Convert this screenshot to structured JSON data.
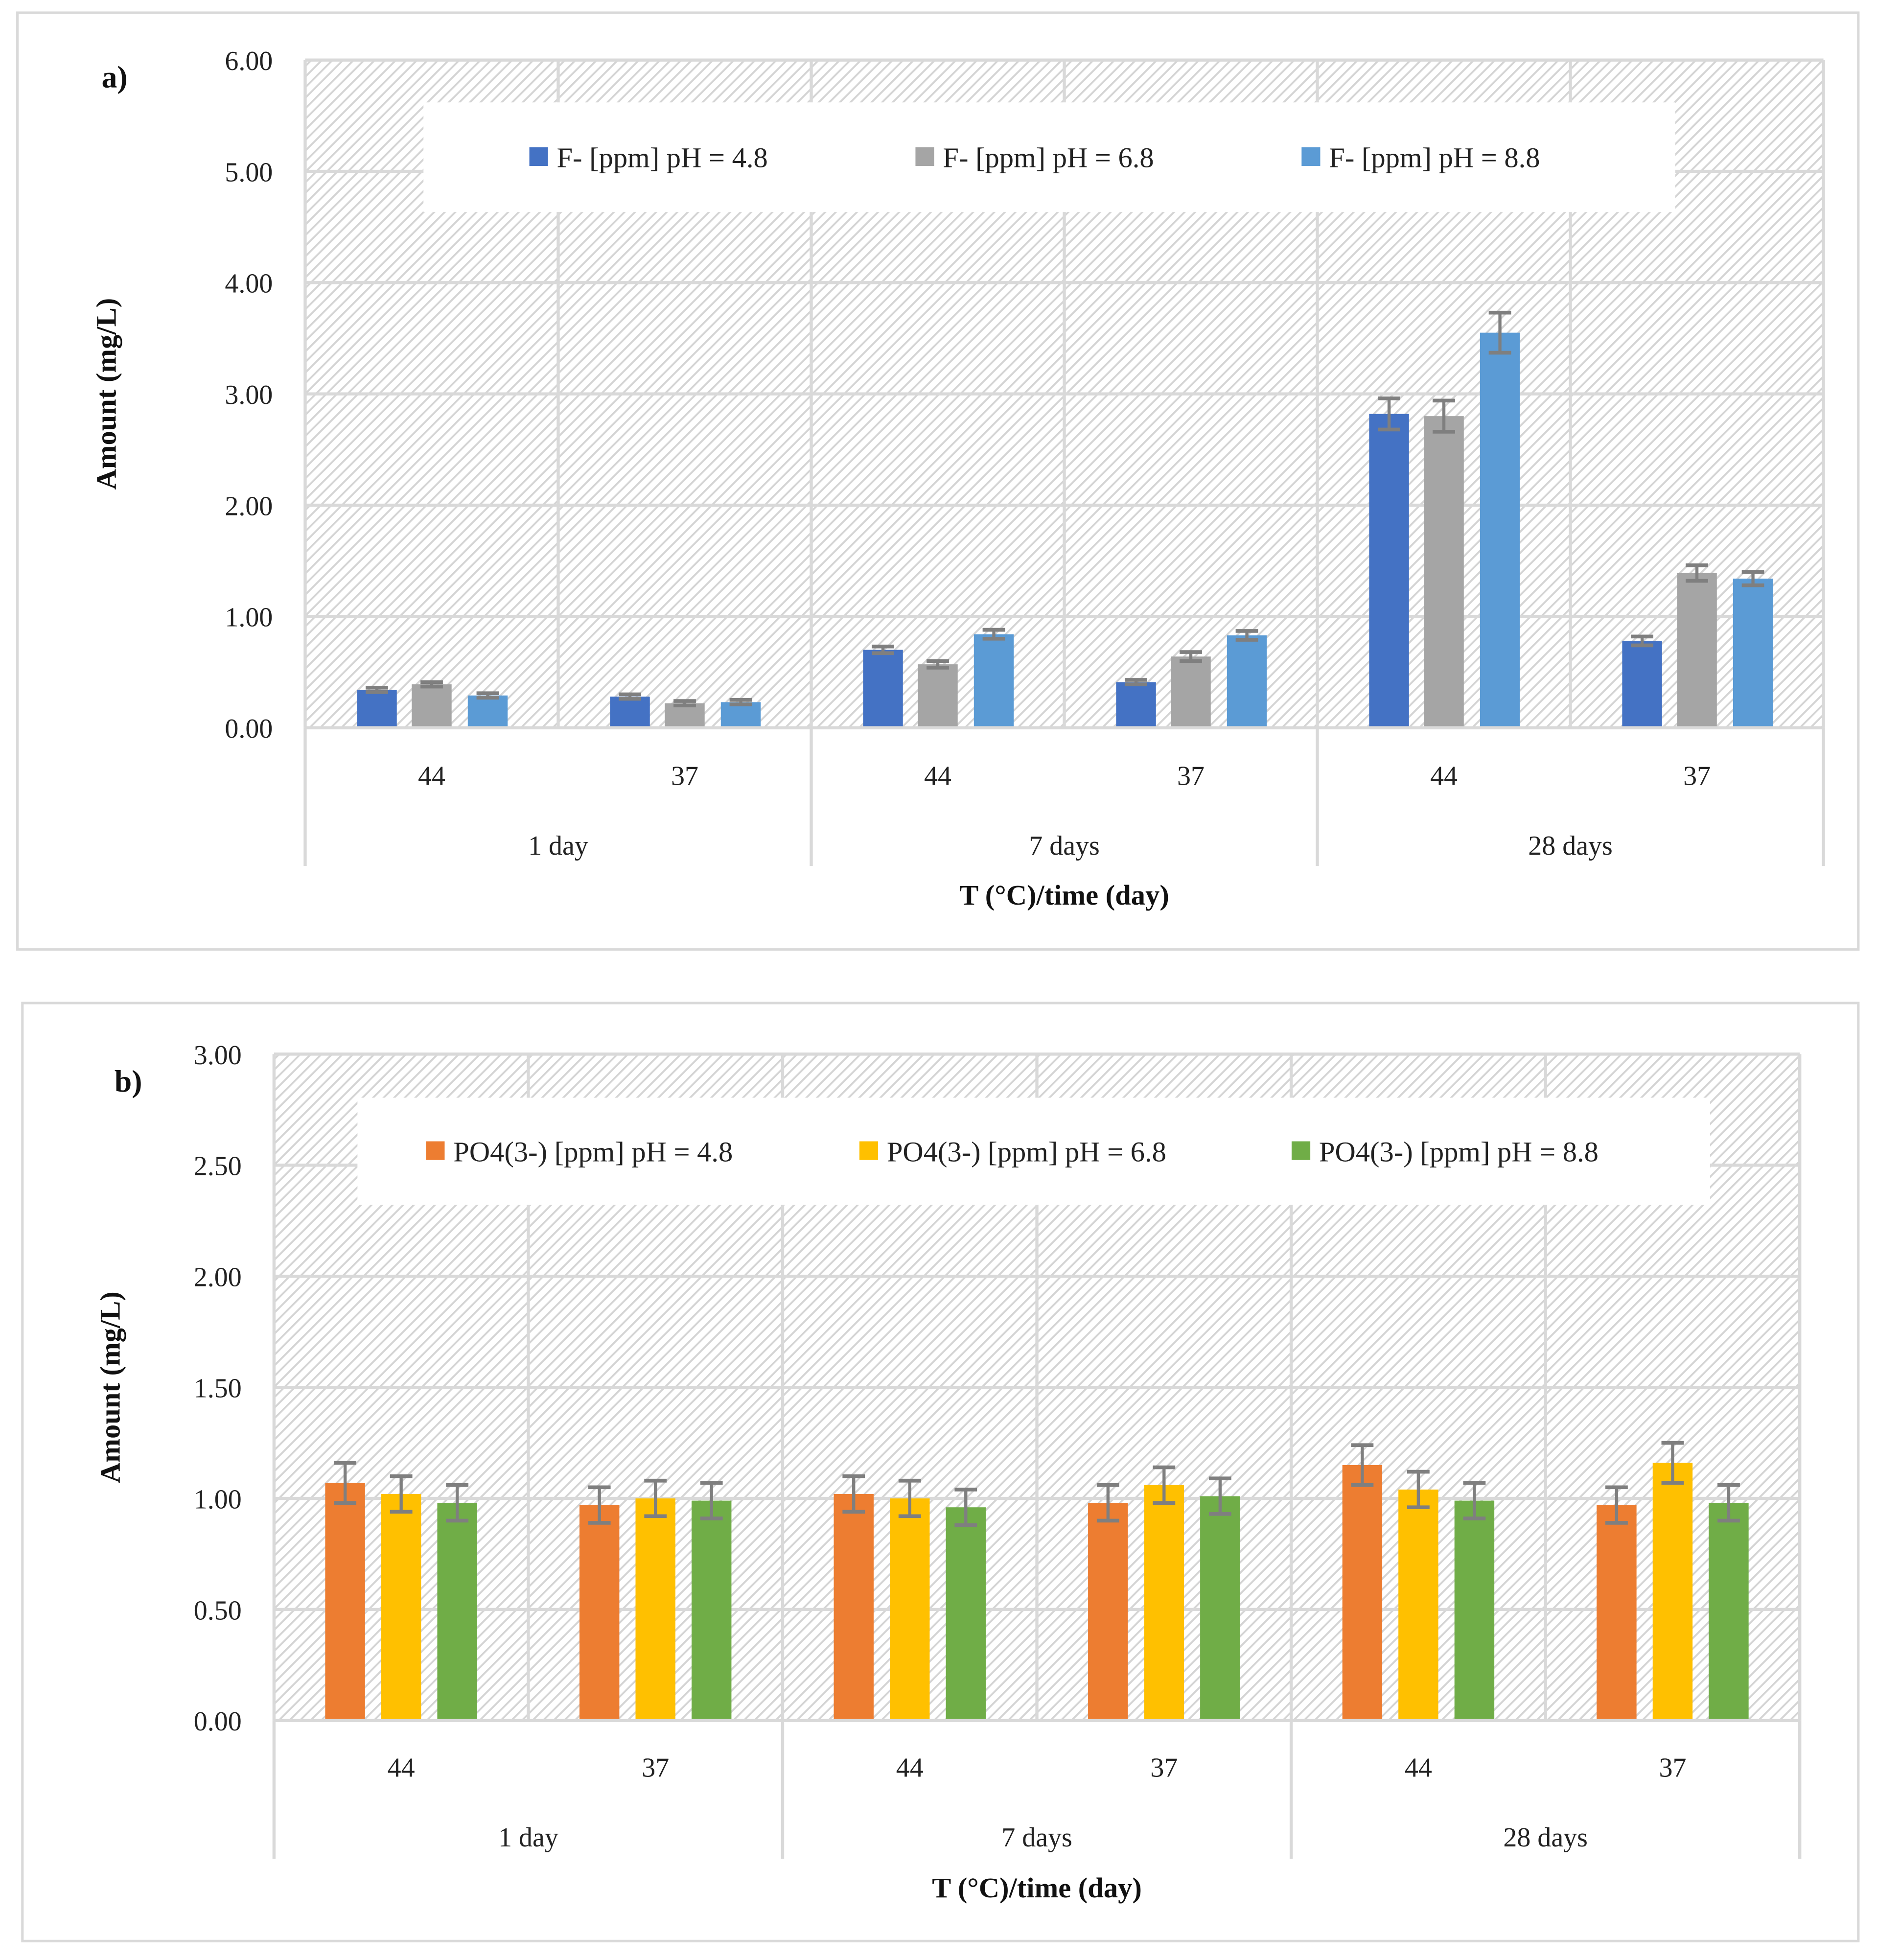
{
  "chart_data": [
    {
      "type": "bar",
      "panel_label": "a)",
      "xlabel": "T (°C)/time (day)",
      "ylabel": "Amount (mg/L)",
      "ylim": [
        0,
        6
      ],
      "yticks": [
        "0.00",
        "1.00",
        "2.00",
        "3.00",
        "4.00",
        "5.00",
        "6.00"
      ],
      "ytick_values": [
        0,
        1,
        2,
        3,
        4,
        5,
        6
      ],
      "grid": true,
      "legend_position": "top-center",
      "groups": [
        "1 day",
        "7 days",
        "28 days"
      ],
      "categories": [
        "44",
        "37",
        "44",
        "37",
        "44",
        "37"
      ],
      "series": [
        {
          "name": "F- [ppm] pH = 4.8",
          "color": "#4472C4",
          "values": [
            0.34,
            0.28,
            0.7,
            0.41,
            2.82,
            0.78
          ],
          "errors": [
            0.02,
            0.02,
            0.03,
            0.02,
            0.14,
            0.04
          ]
        },
        {
          "name": "F- [ppm] pH = 6.8",
          "color": "#A5A5A5",
          "values": [
            0.39,
            0.22,
            0.57,
            0.64,
            2.8,
            1.39
          ],
          "errors": [
            0.02,
            0.02,
            0.03,
            0.04,
            0.14,
            0.07
          ]
        },
        {
          "name": "F- [ppm] pH = 8.8",
          "color": "#5B9BD5",
          "values": [
            0.29,
            0.23,
            0.84,
            0.83,
            3.55,
            1.34
          ],
          "errors": [
            0.02,
            0.02,
            0.04,
            0.04,
            0.18,
            0.06
          ]
        }
      ]
    },
    {
      "type": "bar",
      "panel_label": "b)",
      "xlabel": "T (°C)/time (day)",
      "ylabel": "Amount (mg/L)",
      "ylim": [
        0,
        3
      ],
      "yticks": [
        "0.00",
        "0.50",
        "1.00",
        "1.50",
        "2.00",
        "2.50",
        "3.00"
      ],
      "ytick_values": [
        0,
        0.5,
        1,
        1.5,
        2,
        2.5,
        3
      ],
      "grid": true,
      "legend_position": "top-center",
      "groups": [
        "1 day",
        "7 days",
        "28 days"
      ],
      "categories": [
        "44",
        "37",
        "44",
        "37",
        "44",
        "37"
      ],
      "series": [
        {
          "name": "PO4(3-) [ppm] pH = 4.8",
          "color": "#ED7D31",
          "values": [
            1.07,
            0.97,
            1.02,
            0.98,
            1.15,
            0.97
          ],
          "errors": [
            0.09,
            0.08,
            0.08,
            0.08,
            0.09,
            0.08
          ]
        },
        {
          "name": "PO4(3-) [ppm] pH = 6.8",
          "color": "#FFC000",
          "values": [
            1.02,
            1.0,
            1.0,
            1.06,
            1.04,
            1.16
          ],
          "errors": [
            0.08,
            0.08,
            0.08,
            0.08,
            0.08,
            0.09
          ]
        },
        {
          "name": "PO4(3-) [ppm] pH = 8.8",
          "color": "#70AD47",
          "values": [
            0.98,
            0.99,
            0.96,
            1.01,
            0.99,
            0.98
          ],
          "errors": [
            0.08,
            0.08,
            0.08,
            0.08,
            0.08,
            0.08
          ]
        }
      ]
    }
  ]
}
